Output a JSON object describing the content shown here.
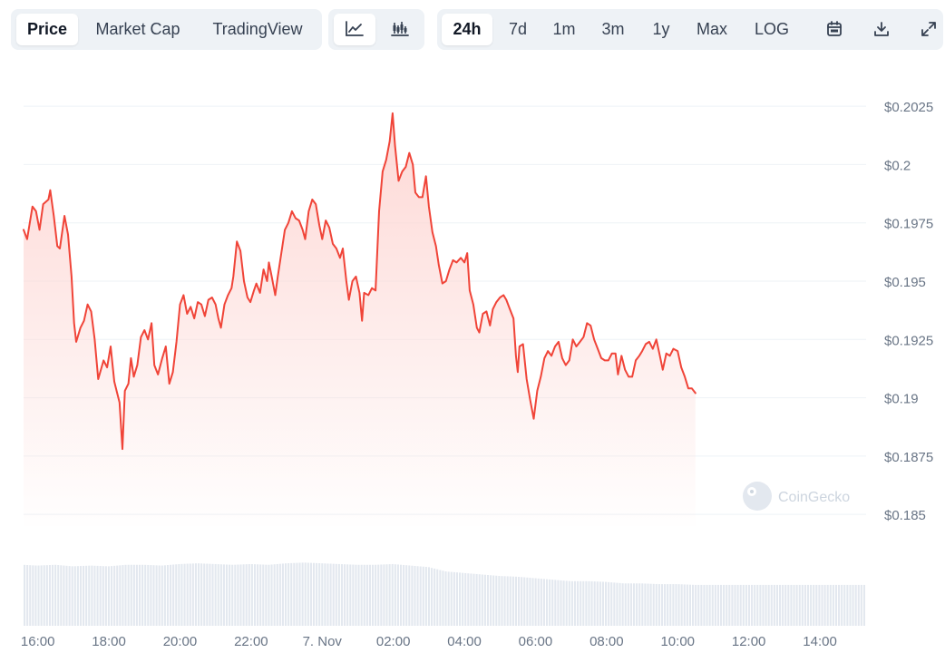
{
  "toolbar": {
    "view_tabs": [
      {
        "label": "Price",
        "active": true
      },
      {
        "label": "Market Cap",
        "active": false
      },
      {
        "label": "TradingView",
        "active": false
      }
    ],
    "chart_type_icons": [
      "line-chart-icon",
      "candlestick-icon"
    ],
    "ranges": [
      {
        "label": "24h",
        "active": true
      },
      {
        "label": "7d",
        "active": false
      },
      {
        "label": "1m",
        "active": false
      },
      {
        "label": "3m",
        "active": false
      },
      {
        "label": "1y",
        "active": false
      },
      {
        "label": "Max",
        "active": false
      },
      {
        "label": "LOG",
        "active": false
      }
    ],
    "tool_icons": [
      "calendar-icon",
      "download-icon",
      "expand-icon"
    ]
  },
  "watermark": "CoinGecko",
  "colors": {
    "line": "#f04438",
    "fill_top": "#fdd6d3",
    "grid": "#eef2f6",
    "volume": "#e3e8ef",
    "text": "#364152",
    "axis_text": "#697586"
  },
  "chart_data": {
    "type": "area",
    "title": "",
    "xlabel": "",
    "ylabel": "",
    "ylim": [
      0.1845,
      0.2027
    ],
    "yticks": [
      0.185,
      0.1875,
      0.19,
      0.1925,
      0.195,
      0.1975,
      0.2,
      0.2025
    ],
    "ytick_labels": [
      "$0.185",
      "$0.1875",
      "$0.19",
      "$0.1925",
      "$0.195",
      "$0.1975",
      "$0.2",
      "$0.2025"
    ],
    "xlim": [
      15.6,
      39.3
    ],
    "xticks": [
      16,
      18,
      20,
      22,
      24,
      26,
      28,
      30,
      32,
      34,
      36,
      38
    ],
    "xtick_labels": [
      "16:00",
      "18:00",
      "20:00",
      "22:00",
      "7. Nov",
      "02:00",
      "04:00",
      "06:00",
      "08:00",
      "10:00",
      "12:00",
      "14:00"
    ],
    "grid": true,
    "legend": "none",
    "series": [
      {
        "points": [
          [
            15.6,
            0.1972
          ],
          [
            15.7,
            0.1968
          ],
          [
            15.85,
            0.1982
          ],
          [
            15.95,
            0.198
          ],
          [
            16.05,
            0.1972
          ],
          [
            16.15,
            0.1983
          ],
          [
            16.3,
            0.1985
          ],
          [
            16.35,
            0.1989
          ],
          [
            16.45,
            0.1978
          ],
          [
            16.55,
            0.1965
          ],
          [
            16.62,
            0.1964
          ],
          [
            16.75,
            0.1978
          ],
          [
            16.85,
            0.197
          ],
          [
            16.95,
            0.1952
          ],
          [
            17.02,
            0.1932
          ],
          [
            17.08,
            0.1924
          ],
          [
            17.2,
            0.193
          ],
          [
            17.3,
            0.1933
          ],
          [
            17.4,
            0.194
          ],
          [
            17.5,
            0.1937
          ],
          [
            17.6,
            0.1925
          ],
          [
            17.7,
            0.1908
          ],
          [
            17.85,
            0.1916
          ],
          [
            17.95,
            0.1913
          ],
          [
            18.05,
            0.1922
          ],
          [
            18.15,
            0.1907
          ],
          [
            18.2,
            0.1904
          ],
          [
            18.3,
            0.1898
          ],
          [
            18.38,
            0.1878
          ],
          [
            18.45,
            0.1903
          ],
          [
            18.55,
            0.1906
          ],
          [
            18.62,
            0.1917
          ],
          [
            18.7,
            0.1909
          ],
          [
            18.8,
            0.1914
          ],
          [
            18.9,
            0.1926
          ],
          [
            19.0,
            0.1929
          ],
          [
            19.1,
            0.1925
          ],
          [
            19.2,
            0.1932
          ],
          [
            19.28,
            0.1914
          ],
          [
            19.38,
            0.191
          ],
          [
            19.5,
            0.1917
          ],
          [
            19.6,
            0.1922
          ],
          [
            19.7,
            0.1906
          ],
          [
            19.8,
            0.1911
          ],
          [
            19.9,
            0.1924
          ],
          [
            20.0,
            0.194
          ],
          [
            20.1,
            0.1944
          ],
          [
            20.2,
            0.1936
          ],
          [
            20.3,
            0.1939
          ],
          [
            20.4,
            0.1934
          ],
          [
            20.5,
            0.1941
          ],
          [
            20.6,
            0.194
          ],
          [
            20.7,
            0.1935
          ],
          [
            20.8,
            0.1942
          ],
          [
            20.9,
            0.1943
          ],
          [
            21.0,
            0.194
          ],
          [
            21.08,
            0.1934
          ],
          [
            21.15,
            0.193
          ],
          [
            21.25,
            0.194
          ],
          [
            21.35,
            0.1944
          ],
          [
            21.45,
            0.1947
          ],
          [
            21.5,
            0.1952
          ],
          [
            21.6,
            0.1967
          ],
          [
            21.7,
            0.1963
          ],
          [
            21.8,
            0.195
          ],
          [
            21.9,
            0.1943
          ],
          [
            21.98,
            0.1941
          ],
          [
            22.08,
            0.1946
          ],
          [
            22.15,
            0.1949
          ],
          [
            22.25,
            0.1945
          ],
          [
            22.35,
            0.1955
          ],
          [
            22.45,
            0.195
          ],
          [
            22.5,
            0.1958
          ],
          [
            22.58,
            0.1952
          ],
          [
            22.68,
            0.1944
          ],
          [
            22.75,
            0.1952
          ],
          [
            22.85,
            0.1962
          ],
          [
            22.95,
            0.1972
          ],
          [
            23.05,
            0.1975
          ],
          [
            23.15,
            0.198
          ],
          [
            23.25,
            0.1977
          ],
          [
            23.35,
            0.1976
          ],
          [
            23.45,
            0.1972
          ],
          [
            23.52,
            0.1968
          ],
          [
            23.62,
            0.198
          ],
          [
            23.72,
            0.1985
          ],
          [
            23.82,
            0.1983
          ],
          [
            23.92,
            0.1974
          ],
          [
            24.0,
            0.1968
          ],
          [
            24.1,
            0.1976
          ],
          [
            24.2,
            0.1973
          ],
          [
            24.3,
            0.1966
          ],
          [
            24.4,
            0.1964
          ],
          [
            24.5,
            0.196
          ],
          [
            24.58,
            0.1964
          ],
          [
            24.68,
            0.195
          ],
          [
            24.75,
            0.1942
          ],
          [
            24.85,
            0.195
          ],
          [
            24.95,
            0.1952
          ],
          [
            25.05,
            0.1945
          ],
          [
            25.12,
            0.1933
          ],
          [
            25.18,
            0.1945
          ],
          [
            25.3,
            0.1944
          ],
          [
            25.4,
            0.1947
          ],
          [
            25.5,
            0.1946
          ],
          [
            25.6,
            0.198
          ],
          [
            25.7,
            0.1997
          ],
          [
            25.8,
            0.2002
          ],
          [
            25.9,
            0.201
          ],
          [
            25.98,
            0.2022
          ],
          [
            26.05,
            0.2008
          ],
          [
            26.15,
            0.1993
          ],
          [
            26.25,
            0.1997
          ],
          [
            26.35,
            0.1999
          ],
          [
            26.45,
            0.2005
          ],
          [
            26.55,
            0.2
          ],
          [
            26.62,
            0.1988
          ],
          [
            26.72,
            0.1986
          ],
          [
            26.82,
            0.1986
          ],
          [
            26.92,
            0.1995
          ],
          [
            27.0,
            0.1982
          ],
          [
            27.1,
            0.1971
          ],
          [
            27.2,
            0.1965
          ],
          [
            27.28,
            0.1957
          ],
          [
            27.38,
            0.1949
          ],
          [
            27.48,
            0.195
          ],
          [
            27.58,
            0.1955
          ],
          [
            27.68,
            0.1959
          ],
          [
            27.78,
            0.1958
          ],
          [
            27.9,
            0.196
          ],
          [
            28.0,
            0.1958
          ],
          [
            28.08,
            0.1962
          ],
          [
            28.15,
            0.1946
          ],
          [
            28.25,
            0.194
          ],
          [
            28.35,
            0.193
          ],
          [
            28.42,
            0.1928
          ],
          [
            28.52,
            0.1936
          ],
          [
            28.62,
            0.1937
          ],
          [
            28.72,
            0.1931
          ],
          [
            28.8,
            0.1938
          ],
          [
            28.9,
            0.1941
          ],
          [
            29.0,
            0.1943
          ],
          [
            29.1,
            0.1944
          ],
          [
            29.18,
            0.1942
          ],
          [
            29.28,
            0.1938
          ],
          [
            29.38,
            0.1934
          ],
          [
            29.45,
            0.1918
          ],
          [
            29.5,
            0.1911
          ],
          [
            29.55,
            0.1922
          ],
          [
            29.65,
            0.1923
          ],
          [
            29.75,
            0.1908
          ],
          [
            29.85,
            0.1899
          ],
          [
            29.95,
            0.1891
          ],
          [
            30.05,
            0.1903
          ],
          [
            30.15,
            0.1909
          ],
          [
            30.25,
            0.1917
          ],
          [
            30.35,
            0.192
          ],
          [
            30.45,
            0.1918
          ],
          [
            30.55,
            0.1922
          ],
          [
            30.65,
            0.1924
          ],
          [
            30.75,
            0.1917
          ],
          [
            30.85,
            0.1914
          ],
          [
            30.95,
            0.1916
          ],
          [
            31.05,
            0.1925
          ],
          [
            31.15,
            0.1922
          ],
          [
            31.25,
            0.1924
          ],
          [
            31.35,
            0.1926
          ],
          [
            31.45,
            0.1932
          ],
          [
            31.55,
            0.1931
          ],
          [
            31.65,
            0.1925
          ],
          [
            31.75,
            0.1921
          ],
          [
            31.85,
            0.1917
          ],
          [
            31.95,
            0.1916
          ],
          [
            32.05,
            0.1916
          ],
          [
            32.15,
            0.1919
          ],
          [
            32.25,
            0.1919
          ],
          [
            32.32,
            0.191
          ],
          [
            32.42,
            0.1918
          ],
          [
            32.52,
            0.1912
          ],
          [
            32.62,
            0.1909
          ],
          [
            32.72,
            0.1909
          ],
          [
            32.82,
            0.1916
          ],
          [
            32.92,
            0.1918
          ],
          [
            33.0,
            0.192
          ],
          [
            33.1,
            0.1923
          ],
          [
            33.2,
            0.1924
          ],
          [
            33.3,
            0.1921
          ],
          [
            33.4,
            0.1925
          ],
          [
            33.5,
            0.1918
          ],
          [
            33.58,
            0.1912
          ],
          [
            33.68,
            0.1919
          ],
          [
            33.78,
            0.1918
          ],
          [
            33.88,
            0.1921
          ],
          [
            34.0,
            0.192
          ],
          [
            34.1,
            0.1913
          ],
          [
            34.2,
            0.1909
          ],
          [
            34.3,
            0.1904
          ],
          [
            34.4,
            0.1904
          ],
          [
            34.5,
            0.1902
          ]
        ]
      }
    ],
    "volume": [
      [
        15.6,
        0.82
      ],
      [
        16.0,
        0.81
      ],
      [
        16.5,
        0.82
      ],
      [
        17.0,
        0.8
      ],
      [
        17.5,
        0.81
      ],
      [
        18.0,
        0.8
      ],
      [
        18.5,
        0.82
      ],
      [
        19.0,
        0.82
      ],
      [
        19.5,
        0.81
      ],
      [
        20.0,
        0.83
      ],
      [
        20.5,
        0.84
      ],
      [
        21.0,
        0.83
      ],
      [
        21.5,
        0.82
      ],
      [
        22.0,
        0.83
      ],
      [
        22.5,
        0.82
      ],
      [
        23.0,
        0.84
      ],
      [
        23.5,
        0.85
      ],
      [
        24.0,
        0.84
      ],
      [
        24.5,
        0.83
      ],
      [
        25.0,
        0.82
      ],
      [
        25.5,
        0.82
      ],
      [
        26.0,
        0.83
      ],
      [
        26.5,
        0.81
      ],
      [
        27.0,
        0.79
      ],
      [
        27.5,
        0.73
      ],
      [
        28.0,
        0.71
      ],
      [
        28.5,
        0.69
      ],
      [
        29.0,
        0.67
      ],
      [
        29.5,
        0.66
      ],
      [
        30.0,
        0.64
      ],
      [
        30.5,
        0.62
      ],
      [
        31.0,
        0.6
      ],
      [
        31.5,
        0.6
      ],
      [
        32.0,
        0.59
      ],
      [
        32.5,
        0.57
      ],
      [
        33.0,
        0.57
      ],
      [
        33.5,
        0.56
      ],
      [
        34.0,
        0.56
      ],
      [
        34.5,
        0.55
      ]
    ]
  }
}
